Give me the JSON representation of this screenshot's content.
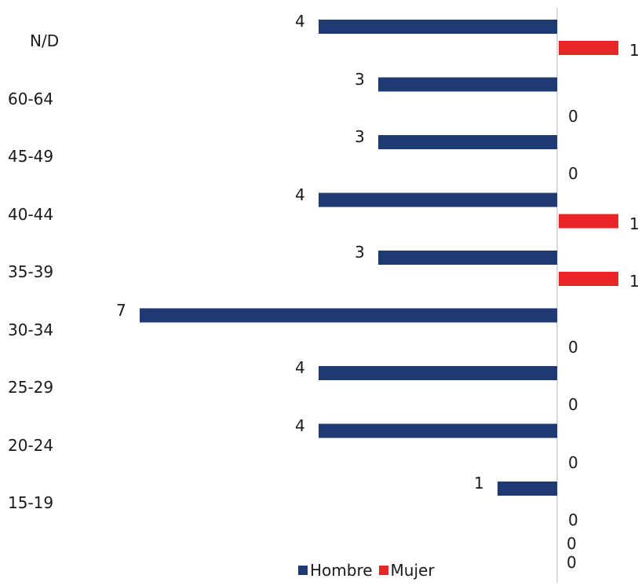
{
  "chart_data": {
    "type": "bar",
    "orientation": "horizontal",
    "categories": [
      "N/D",
      "60-64",
      "45-49",
      "40-44",
      "35-39",
      "30-34",
      "25-29",
      "20-24",
      "15-19"
    ],
    "series": [
      {
        "name": "Hombre",
        "color": "#1f3a73",
        "values": [
          4,
          3,
          3,
          4,
          3,
          7,
          4,
          4,
          1
        ],
        "direction": "left"
      },
      {
        "name": "Mujer",
        "color": "#e8262a",
        "values": [
          1,
          0,
          0,
          1,
          1,
          0,
          0,
          0,
          0
        ],
        "direction": "right"
      }
    ],
    "extra_labels": [
      "0",
      "0"
    ],
    "legend_position": "bottom",
    "grid": false,
    "title": "",
    "xlabel": "",
    "ylabel": ""
  }
}
